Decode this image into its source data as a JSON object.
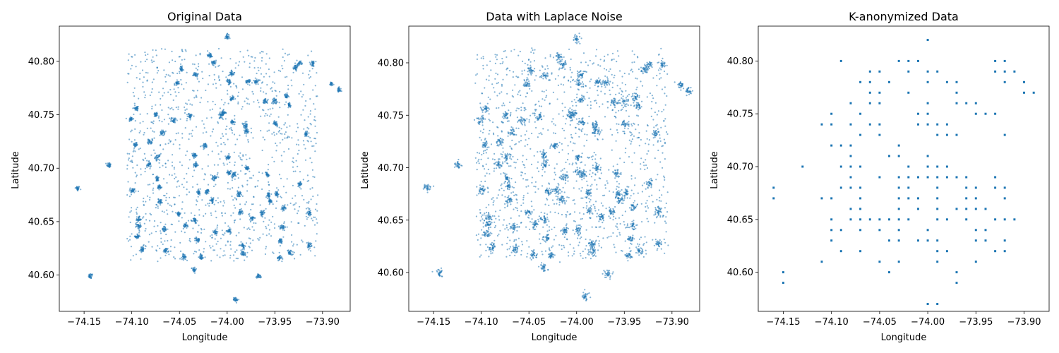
{
  "figure": {
    "background": "#ffffff",
    "point_color": "#1f77b4"
  },
  "chart_data": [
    {
      "type": "scatter",
      "title": "Original Data",
      "xlabel": "Longitude",
      "ylabel": "Latitude",
      "xlim": [
        -74.176,
        -73.871
      ],
      "ylim": [
        40.566,
        40.833
      ],
      "xticks": [
        -74.15,
        -74.1,
        -74.05,
        -74.0,
        -73.95,
        -73.9
      ],
      "xtick_labels": [
        "−74.15",
        "−74.10",
        "−74.05",
        "−74.00",
        "−73.95",
        "−73.90"
      ],
      "yticks": [
        40.6,
        40.65,
        40.7,
        40.75,
        40.8
      ],
      "ytick_labels": [
        "40.60",
        "40.65",
        "40.70",
        "40.75",
        "40.80"
      ],
      "grid": false,
      "marker": "small dot, semi-transparent",
      "background_region": {
        "x": [
          -74.105,
          -73.905
        ],
        "y": [
          40.612,
          40.812
        ]
      },
      "clusters": [
        [
          -74.157,
          40.681
        ],
        [
          -74.143,
          40.599
        ],
        [
          -74.124,
          40.703
        ],
        [
          -74.101,
          40.746
        ],
        [
          -74.095,
          40.756
        ],
        [
          -74.096,
          40.722
        ],
        [
          -74.099,
          40.679
        ],
        [
          -74.093,
          40.652
        ],
        [
          -74.093,
          40.646
        ],
        [
          -74.094,
          40.636
        ],
        [
          -74.089,
          40.624
        ],
        [
          -74.081,
          40.725
        ],
        [
          -74.082,
          40.703
        ],
        [
          -74.075,
          40.75
        ],
        [
          -74.073,
          40.71
        ],
        [
          -74.073,
          40.69
        ],
        [
          -74.071,
          40.682
        ],
        [
          -74.07,
          40.669
        ],
        [
          -74.068,
          40.733
        ],
        [
          -74.066,
          40.643
        ],
        [
          -74.064,
          40.623
        ],
        [
          -74.056,
          40.745
        ],
        [
          -74.053,
          40.779
        ],
        [
          -74.051,
          40.657
        ],
        [
          -74.048,
          40.793
        ],
        [
          -74.045,
          40.617
        ],
        [
          -74.044,
          40.646
        ],
        [
          -74.039,
          40.749
        ],
        [
          -74.035,
          40.605
        ],
        [
          -74.033,
          40.788
        ],
        [
          -74.034,
          40.712
        ],
        [
          -74.033,
          40.703
        ],
        [
          -74.034,
          40.651
        ],
        [
          -74.031,
          40.633
        ],
        [
          -74.03,
          40.677
        ],
        [
          -74.027,
          40.617
        ],
        [
          -74.023,
          40.721
        ],
        [
          -74.021,
          40.678
        ],
        [
          -74.018,
          40.806
        ],
        [
          -74.016,
          40.67
        ],
        [
          -74.014,
          40.799
        ],
        [
          -74.013,
          40.691
        ],
        [
          -74.012,
          40.64
        ],
        [
          -74.006,
          40.75
        ],
        [
          -74.004,
          40.752
        ],
        [
          -74.0,
          40.823
        ],
        [
          -73.998,
          40.781
        ],
        [
          -73.999,
          40.71
        ],
        [
          -73.998,
          40.696
        ],
        [
          -73.998,
          40.641
        ],
        [
          -73.995,
          40.789
        ],
        [
          -73.995,
          40.765
        ],
        [
          -73.994,
          40.743
        ],
        [
          -73.993,
          40.694
        ],
        [
          -73.991,
          40.577
        ],
        [
          -73.988,
          40.676
        ],
        [
          -73.986,
          40.659
        ],
        [
          -73.984,
          40.628
        ],
        [
          -73.983,
          40.62
        ],
        [
          -73.981,
          40.74
        ],
        [
          -73.98,
          40.735
        ],
        [
          -73.979,
          40.7
        ],
        [
          -73.978,
          40.781
        ],
        [
          -73.974,
          40.653
        ],
        [
          -73.969,
          40.781
        ],
        [
          -73.967,
          40.599
        ],
        [
          -73.963,
          40.658
        ],
        [
          -73.96,
          40.763
        ],
        [
          -73.958,
          40.694
        ],
        [
          -73.957,
          40.675
        ],
        [
          -73.955,
          40.669
        ],
        [
          -73.95,
          40.763
        ],
        [
          -73.949,
          40.742
        ],
        [
          -73.948,
          40.676
        ],
        [
          -73.945,
          40.616
        ],
        [
          -73.944,
          40.632
        ],
        [
          -73.942,
          40.645
        ],
        [
          -73.941,
          40.663
        ],
        [
          -73.938,
          40.767
        ],
        [
          -73.935,
          40.759
        ],
        [
          -73.934,
          40.621
        ],
        [
          -73.928,
          40.794
        ],
        [
          -73.925,
          40.798
        ],
        [
          -73.924,
          40.685
        ],
        [
          -73.917,
          40.732
        ],
        [
          -73.914,
          40.658
        ],
        [
          -73.914,
          40.628
        ],
        [
          -73.91,
          40.798
        ],
        [
          -73.891,
          40.779
        ],
        [
          -73.883,
          40.773
        ]
      ]
    },
    {
      "type": "scatter",
      "title": "Data with Laplace Noise",
      "xlabel": "Longitude",
      "ylabel": "Latitude",
      "xlim": [
        -74.176,
        -73.871
      ],
      "ylim": [
        40.563,
        40.835
      ],
      "xticks": [
        -74.15,
        -74.1,
        -74.05,
        -74.0,
        -73.95,
        -73.9
      ],
      "xtick_labels": [
        "−74.15",
        "−74.10",
        "−74.05",
        "−74.00",
        "−73.95",
        "−73.90"
      ],
      "yticks": [
        40.6,
        40.65,
        40.7,
        40.75,
        40.8
      ],
      "ytick_labels": [
        "40.60",
        "40.65",
        "40.70",
        "40.75",
        "40.80"
      ],
      "grid": false,
      "marker": "small dot, semi-transparent",
      "note": "same clusters as Original Data, each point perturbed by Laplace noise"
    },
    {
      "type": "scatter",
      "title": "K-anonymized Data",
      "xlabel": "Longitude",
      "ylabel": "Latitude",
      "xlim": [
        -74.176,
        -73.874
      ],
      "ylim": [
        40.563,
        40.833
      ],
      "xticks": [
        -74.15,
        -74.1,
        -74.05,
        -74.0,
        -73.95,
        -73.9
      ],
      "xtick_labels": [
        "−74.15",
        "−74.10",
        "−74.05",
        "−74.00",
        "−73.95",
        "−73.90"
      ],
      "yticks": [
        40.6,
        40.65,
        40.7,
        40.75,
        40.8
      ],
      "ytick_labels": [
        "40.60",
        "40.65",
        "40.70",
        "40.75",
        "40.80"
      ],
      "grid": false,
      "marker": "small square, points snapped to 0.01° grid",
      "points": [
        [
          -74.16,
          40.68
        ],
        [
          -74.16,
          40.67
        ],
        [
          -74.15,
          40.6
        ],
        [
          -74.15,
          40.59
        ],
        [
          -74.13,
          40.7
        ],
        [
          -74.11,
          40.74
        ],
        [
          -74.11,
          40.67
        ],
        [
          -74.11,
          40.61
        ],
        [
          -74.1,
          40.75
        ],
        [
          -74.1,
          40.74
        ],
        [
          -74.1,
          40.72
        ],
        [
          -74.1,
          40.67
        ],
        [
          -74.1,
          40.65
        ],
        [
          -74.1,
          40.64
        ],
        [
          -74.1,
          40.63
        ],
        [
          -74.09,
          40.8
        ],
        [
          -74.09,
          40.72
        ],
        [
          -74.09,
          40.7
        ],
        [
          -74.09,
          40.68
        ],
        [
          -74.09,
          40.64
        ],
        [
          -74.09,
          40.62
        ],
        [
          -74.08,
          40.76
        ],
        [
          -74.08,
          40.74
        ],
        [
          -74.08,
          40.72
        ],
        [
          -74.08,
          40.71
        ],
        [
          -74.08,
          40.7
        ],
        [
          -74.08,
          40.69
        ],
        [
          -74.08,
          40.68
        ],
        [
          -74.08,
          40.66
        ],
        [
          -74.08,
          40.65
        ],
        [
          -74.07,
          40.78
        ],
        [
          -74.07,
          40.75
        ],
        [
          -74.07,
          40.73
        ],
        [
          -74.07,
          40.7
        ],
        [
          -74.07,
          40.68
        ],
        [
          -74.07,
          40.67
        ],
        [
          -74.07,
          40.66
        ],
        [
          -74.07,
          40.65
        ],
        [
          -74.07,
          40.64
        ],
        [
          -74.07,
          40.62
        ],
        [
          -74.06,
          40.79
        ],
        [
          -74.06,
          40.78
        ],
        [
          -74.06,
          40.77
        ],
        [
          -74.06,
          40.76
        ],
        [
          -74.06,
          40.74
        ],
        [
          -74.06,
          40.65
        ],
        [
          -74.05,
          40.79
        ],
        [
          -74.05,
          40.77
        ],
        [
          -74.05,
          40.76
        ],
        [
          -74.05,
          40.74
        ],
        [
          -74.05,
          40.73
        ],
        [
          -74.05,
          40.69
        ],
        [
          -74.05,
          40.65
        ],
        [
          -74.05,
          40.64
        ],
        [
          -74.05,
          40.61
        ],
        [
          -74.04,
          40.78
        ],
        [
          -74.04,
          40.71
        ],
        [
          -74.04,
          40.65
        ],
        [
          -74.04,
          40.63
        ],
        [
          -74.04,
          40.6
        ],
        [
          -74.03,
          40.8
        ],
        [
          -74.03,
          40.72
        ],
        [
          -74.03,
          40.71
        ],
        [
          -74.03,
          40.69
        ],
        [
          -74.03,
          40.68
        ],
        [
          -74.03,
          40.67
        ],
        [
          -74.03,
          40.66
        ],
        [
          -74.03,
          40.65
        ],
        [
          -74.03,
          40.64
        ],
        [
          -74.03,
          40.63
        ],
        [
          -74.03,
          40.61
        ],
        [
          -74.02,
          40.8
        ],
        [
          -74.02,
          40.79
        ],
        [
          -74.02,
          40.77
        ],
        [
          -74.02,
          40.7
        ],
        [
          -74.02,
          40.69
        ],
        [
          -74.02,
          40.68
        ],
        [
          -74.02,
          40.67
        ],
        [
          -74.02,
          40.65
        ],
        [
          -74.01,
          40.8
        ],
        [
          -74.01,
          40.75
        ],
        [
          -74.01,
          40.74
        ],
        [
          -74.01,
          40.69
        ],
        [
          -74.01,
          40.67
        ],
        [
          -74.01,
          40.66
        ],
        [
          -74.01,
          40.63
        ],
        [
          -74.0,
          40.82
        ],
        [
          -74.0,
          40.79
        ],
        [
          -74.0,
          40.78
        ],
        [
          -74.0,
          40.76
        ],
        [
          -74.0,
          40.75
        ],
        [
          -74.0,
          40.74
        ],
        [
          -74.0,
          40.71
        ],
        [
          -74.0,
          40.7
        ],
        [
          -74.0,
          40.69
        ],
        [
          -74.0,
          40.64
        ],
        [
          -74.0,
          40.63
        ],
        [
          -74.0,
          40.57
        ],
        [
          -73.99,
          40.79
        ],
        [
          -73.99,
          40.74
        ],
        [
          -73.99,
          40.73
        ],
        [
          -73.99,
          40.7
        ],
        [
          -73.99,
          40.69
        ],
        [
          -73.99,
          40.68
        ],
        [
          -73.99,
          40.67
        ],
        [
          -73.99,
          40.66
        ],
        [
          -73.99,
          40.65
        ],
        [
          -73.99,
          40.63
        ],
        [
          -73.99,
          40.62
        ],
        [
          -73.99,
          40.61
        ],
        [
          -73.99,
          40.57
        ],
        [
          -73.98,
          40.78
        ],
        [
          -73.98,
          40.74
        ],
        [
          -73.98,
          40.73
        ],
        [
          -73.98,
          40.7
        ],
        [
          -73.98,
          40.69
        ],
        [
          -73.98,
          40.65
        ],
        [
          -73.98,
          40.62
        ],
        [
          -73.97,
          40.78
        ],
        [
          -73.97,
          40.77
        ],
        [
          -73.97,
          40.76
        ],
        [
          -73.97,
          40.73
        ],
        [
          -73.97,
          40.69
        ],
        [
          -73.97,
          40.66
        ],
        [
          -73.97,
          40.6
        ],
        [
          -73.97,
          40.59
        ],
        [
          -73.96,
          40.76
        ],
        [
          -73.96,
          40.69
        ],
        [
          -73.96,
          40.68
        ],
        [
          -73.96,
          40.67
        ],
        [
          -73.96,
          40.66
        ],
        [
          -73.96,
          40.65
        ],
        [
          -73.95,
          40.76
        ],
        [
          -73.95,
          40.75
        ],
        [
          -73.95,
          40.68
        ],
        [
          -73.95,
          40.67
        ],
        [
          -73.95,
          40.66
        ],
        [
          -73.95,
          40.64
        ],
        [
          -73.95,
          40.63
        ],
        [
          -73.95,
          40.61
        ],
        [
          -73.94,
          40.75
        ],
        [
          -73.94,
          40.66
        ],
        [
          -73.94,
          40.64
        ],
        [
          -73.94,
          40.63
        ],
        [
          -73.93,
          40.8
        ],
        [
          -73.93,
          40.79
        ],
        [
          -73.93,
          40.75
        ],
        [
          -73.93,
          40.69
        ],
        [
          -73.93,
          40.68
        ],
        [
          -73.93,
          40.65
        ],
        [
          -73.93,
          40.62
        ],
        [
          -73.92,
          40.8
        ],
        [
          -73.92,
          40.79
        ],
        [
          -73.92,
          40.78
        ],
        [
          -73.92,
          40.73
        ],
        [
          -73.92,
          40.68
        ],
        [
          -73.92,
          40.67
        ],
        [
          -73.92,
          40.65
        ],
        [
          -73.92,
          40.63
        ],
        [
          -73.92,
          40.62
        ],
        [
          -73.91,
          40.79
        ],
        [
          -73.91,
          40.65
        ],
        [
          -73.9,
          40.78
        ],
        [
          -73.9,
          40.77
        ],
        [
          -73.89,
          40.77
        ]
      ]
    }
  ]
}
